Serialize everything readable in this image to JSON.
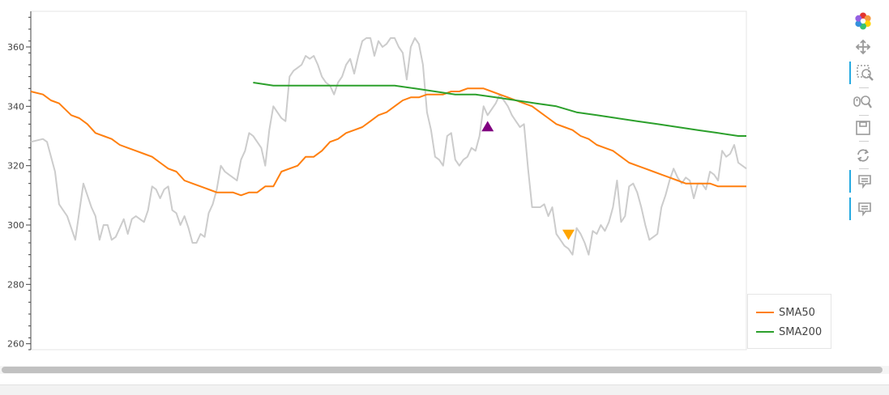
{
  "chart_data": {
    "type": "line",
    "title": "",
    "xlabel": "",
    "ylabel": "",
    "ylim": [
      258,
      372
    ],
    "xlim": [
      0,
      177
    ],
    "y_ticks": [
      260,
      280,
      300,
      320,
      340,
      360
    ],
    "legend_position": "bottom-right",
    "series": [
      {
        "name": "",
        "color": "#cccccc",
        "x": [
          0,
          3,
          4,
          6,
          7,
          9,
          11,
          13,
          15,
          16,
          17,
          18,
          19,
          20,
          21,
          22,
          23,
          24,
          25,
          26,
          27,
          28,
          29,
          30,
          31,
          32,
          33,
          34,
          35,
          36,
          37,
          38,
          39,
          40,
          41,
          42,
          43,
          44,
          45,
          46,
          47,
          48,
          49,
          50,
          51,
          52,
          53,
          54,
          55,
          56,
          57,
          58,
          59,
          60,
          61,
          62,
          63,
          64,
          65,
          66,
          67,
          68,
          69,
          70,
          71,
          72,
          73,
          74,
          75,
          76,
          77,
          78,
          79,
          80,
          81,
          82,
          83,
          84,
          85,
          86,
          87,
          88,
          89,
          90,
          91,
          92,
          93,
          94,
          95,
          96,
          97,
          98,
          99,
          100,
          101,
          102,
          103,
          104,
          105,
          106,
          107,
          108,
          109,
          110,
          111,
          112,
          113,
          114,
          115,
          116,
          117,
          118,
          119,
          120,
          121,
          122,
          123,
          124,
          125,
          126,
          127,
          128,
          129,
          130,
          131,
          132,
          133,
          134,
          135,
          136,
          137,
          138,
          139,
          140,
          141,
          142,
          143,
          144,
          145,
          146,
          147,
          148,
          149,
          150,
          151,
          152,
          153,
          154,
          155,
          156,
          157,
          158,
          159,
          160,
          161,
          162,
          163,
          164,
          165,
          166,
          167,
          168,
          169,
          170,
          171,
          172,
          173,
          174,
          175,
          176,
          177
        ],
        "y": [
          328,
          329,
          328,
          318,
          307,
          303,
          295,
          314,
          306,
          303,
          295,
          300,
          300,
          295,
          296,
          299,
          302,
          297,
          302,
          303,
          302,
          301,
          305,
          313,
          312,
          309,
          312,
          313,
          305,
          304,
          300,
          303,
          299,
          294,
          294,
          297,
          296,
          304,
          307,
          312,
          320,
          318,
          317,
          316,
          315,
          322,
          325,
          331,
          330,
          328,
          326,
          320,
          332,
          340,
          338,
          336,
          335,
          350,
          352,
          353,
          354,
          357,
          356,
          357,
          354,
          350,
          348,
          347,
          344,
          348,
          350,
          354,
          356,
          351,
          357,
          362,
          363,
          363,
          357,
          362,
          360,
          361,
          363,
          363,
          360,
          358,
          349,
          360,
          363,
          361,
          354,
          338,
          332,
          323,
          322,
          320,
          330,
          331,
          322,
          320,
          322,
          323,
          326,
          325,
          330,
          340,
          337,
          339,
          341,
          344,
          342,
          340,
          337,
          335,
          333,
          334,
          319,
          306,
          306,
          306,
          307,
          303,
          306,
          297,
          295,
          293,
          292,
          290,
          299,
          297,
          294,
          290,
          298,
          297,
          300,
          298,
          301,
          306,
          315,
          301,
          303,
          313,
          314,
          311,
          306,
          300,
          295,
          296,
          297,
          306,
          310,
          315,
          319,
          316,
          314,
          316,
          315,
          309,
          314,
          314,
          312,
          318,
          317,
          315,
          325,
          323,
          324,
          327,
          321,
          320,
          319
        ]
      },
      {
        "name": "SMA50",
        "color": "#ff7f0e",
        "x": [
          0,
          3,
          5,
          7,
          10,
          12,
          14,
          16,
          18,
          20,
          22,
          24,
          26,
          28,
          30,
          32,
          34,
          36,
          38,
          40,
          42,
          44,
          46,
          48,
          50,
          52,
          54,
          56,
          58,
          60,
          62,
          64,
          66,
          68,
          70,
          72,
          74,
          76,
          78,
          80,
          82,
          84,
          86,
          88,
          90,
          92,
          94,
          96,
          98,
          100,
          102,
          104,
          106,
          108,
          110,
          112,
          114,
          116,
          118,
          120,
          122,
          124,
          126,
          128,
          130,
          132,
          134,
          136,
          138,
          140,
          142,
          144,
          146,
          148,
          150,
          152,
          154,
          156,
          158,
          160,
          162,
          164,
          166,
          168,
          170,
          172,
          174,
          176,
          177
        ],
        "y": [
          345,
          344,
          342,
          341,
          337,
          336,
          334,
          331,
          330,
          329,
          327,
          326,
          325,
          324,
          323,
          321,
          319,
          318,
          315,
          314,
          313,
          312,
          311,
          311,
          311,
          310,
          311,
          311,
          313,
          313,
          318,
          319,
          320,
          323,
          323,
          325,
          328,
          329,
          331,
          332,
          333,
          335,
          337,
          338,
          340,
          342,
          343,
          343,
          344,
          344,
          344,
          345,
          345,
          346,
          346,
          346,
          345,
          344,
          343,
          342,
          341,
          340,
          338,
          336,
          334,
          333,
          332,
          330,
          329,
          327,
          326,
          325,
          323,
          321,
          320,
          319,
          318,
          317,
          316,
          315,
          314,
          314,
          314,
          314,
          313,
          313,
          313,
          313,
          313
        ]
      },
      {
        "name": "SMA200",
        "color": "#2ca02c",
        "x": [
          55,
          60,
          65,
          70,
          75,
          80,
          85,
          90,
          95,
          100,
          105,
          110,
          115,
          120,
          125,
          130,
          135,
          140,
          145,
          150,
          155,
          160,
          165,
          170,
          175,
          177
        ],
        "y": [
          348,
          347,
          347,
          347,
          347,
          347,
          347,
          347,
          346,
          345,
          344,
          344,
          343,
          342,
          341,
          340,
          338,
          337,
          336,
          335,
          334,
          333,
          332,
          331,
          330,
          330
        ]
      }
    ],
    "markers": [
      {
        "name": "buy",
        "shape": "triangle-up",
        "color": "#800080",
        "x": 113,
        "y": 333
      },
      {
        "name": "sell",
        "shape": "triangle-down",
        "color": "#ffa500",
        "x": 133,
        "y": 297
      }
    ]
  },
  "legend": {
    "items": [
      {
        "label": "SMA50",
        "color": "#ff7f0e"
      },
      {
        "label": "SMA200",
        "color": "#2ca02c"
      }
    ]
  },
  "toolbar": {
    "tools": [
      {
        "icon": "bokeh-logo-icon",
        "active": false
      },
      {
        "icon": "pan-icon",
        "active": false
      },
      {
        "icon": "box-zoom-icon",
        "active": true
      },
      {
        "icon": "wheel-zoom-icon",
        "active": false
      },
      {
        "icon": "save-icon",
        "active": false
      },
      {
        "icon": "reset-icon",
        "active": false
      },
      {
        "icon": "hover-icon",
        "active": true
      },
      {
        "icon": "hover-icon",
        "active": true
      }
    ]
  }
}
